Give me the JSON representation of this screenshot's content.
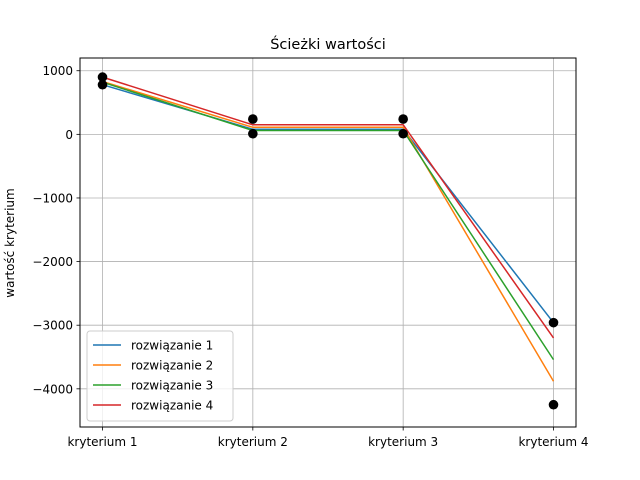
{
  "chart_data": {
    "type": "line",
    "title": "Ścieżki wartości",
    "xlabel": "",
    "ylabel": "wartość kryterium",
    "categories": [
      "kryterium 1",
      "kryterium 2",
      "kryterium 3",
      "kryterium 4"
    ],
    "ylim": [
      -4600,
      1200
    ],
    "yticks": [
      1000,
      0,
      -1000,
      -2000,
      -3000,
      -4000
    ],
    "ytick_labels": [
      "1000",
      "0",
      "−1000",
      "−2000",
      "−3000",
      "−4000"
    ],
    "grid": true,
    "legend": "bottom-left",
    "series": [
      {
        "name": "rozwiązanie 1",
        "color": "#1f77b4",
        "values": [
          780,
          80,
          80,
          -2960
        ]
      },
      {
        "name": "rozwiązanie 2",
        "color": "#ff7f0e",
        "values": [
          830,
          110,
          110,
          -3880
        ]
      },
      {
        "name": "rozwiązanie 3",
        "color": "#2ca02c",
        "values": [
          820,
          60,
          60,
          -3540
        ]
      },
      {
        "name": "rozwiązanie 4",
        "color": "#d62728",
        "values": [
          900,
          150,
          150,
          -3200
        ]
      }
    ],
    "bound_points": {
      "color": "#000000",
      "points": [
        {
          "category": "kryterium 1",
          "value": 900
        },
        {
          "category": "kryterium 1",
          "value": 780
        },
        {
          "category": "kryterium 2",
          "value": 240
        },
        {
          "category": "kryterium 2",
          "value": 10
        },
        {
          "category": "kryterium 3",
          "value": 240
        },
        {
          "category": "kryterium 3",
          "value": 10
        },
        {
          "category": "kryterium 4",
          "value": -2960
        },
        {
          "category": "kryterium 4",
          "value": -4250
        }
      ]
    }
  }
}
